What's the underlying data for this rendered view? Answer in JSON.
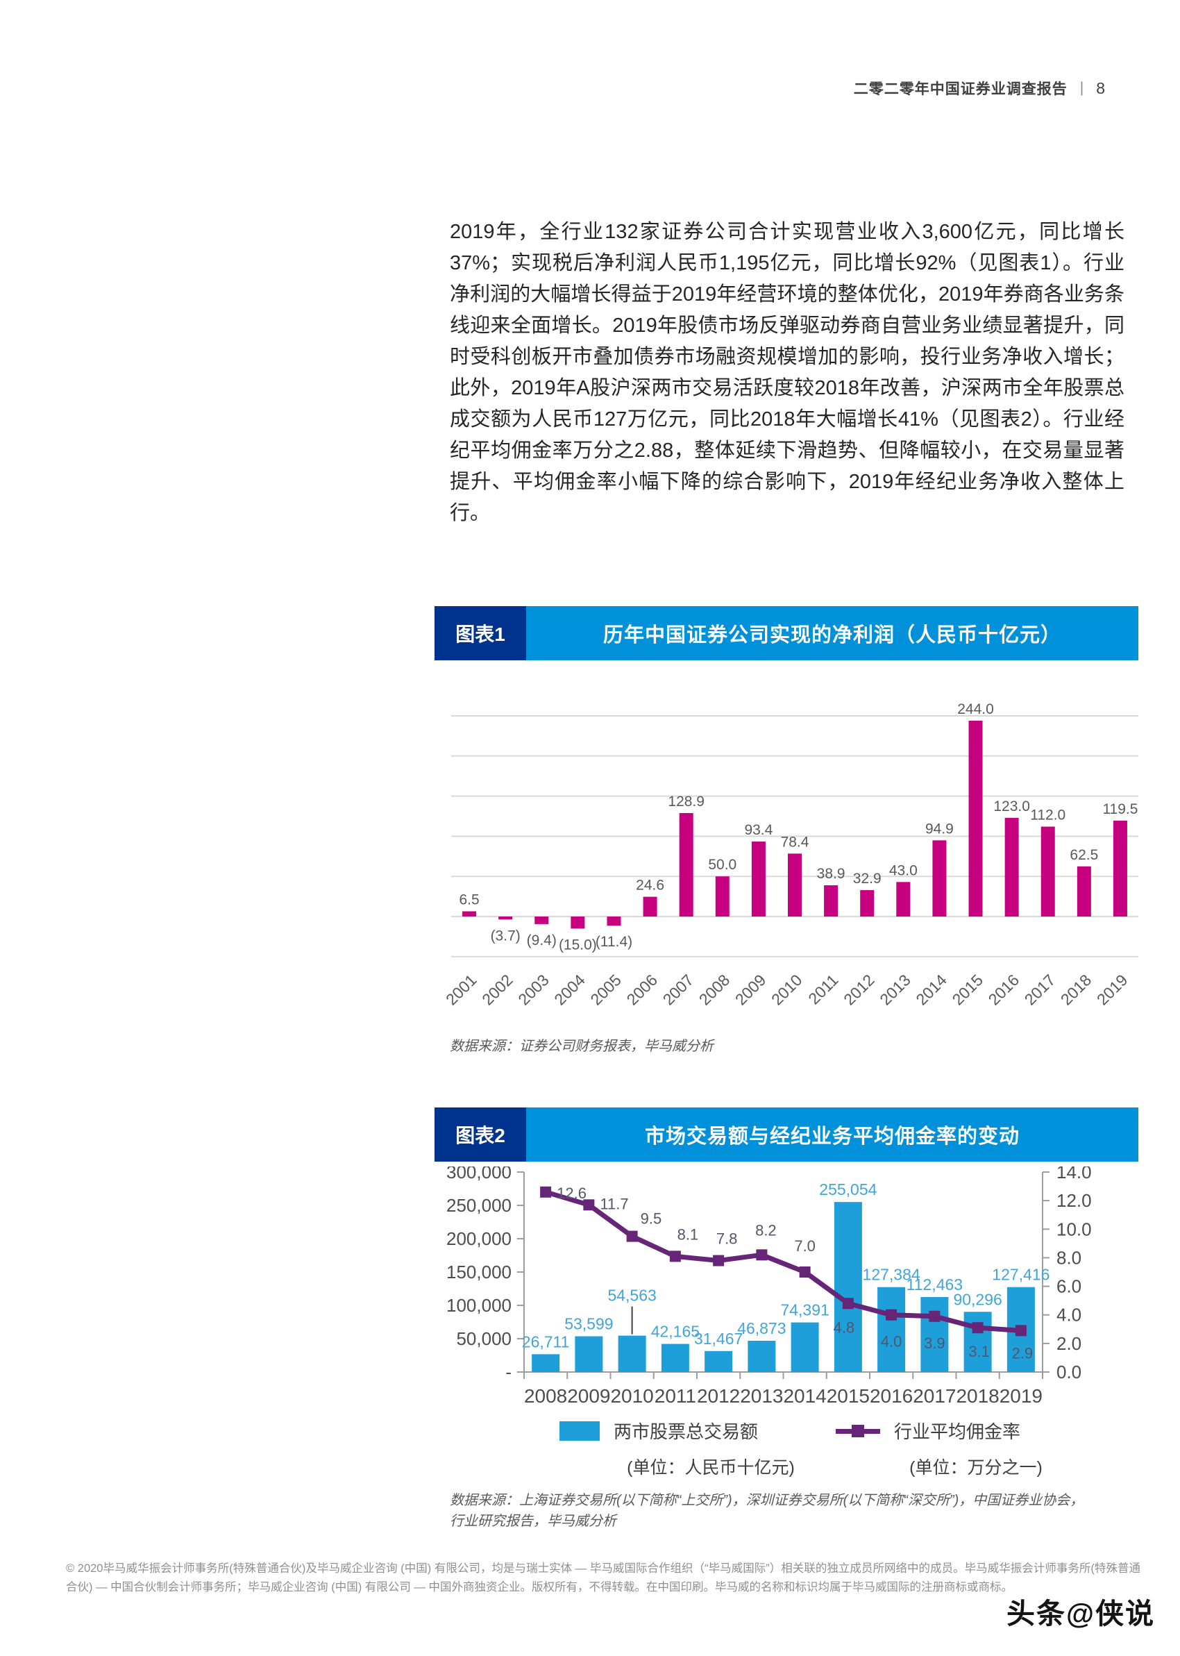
{
  "header": {
    "title": "二零二零年中国证券业调查报告",
    "separator": "|",
    "page_number": "8"
  },
  "paragraph": "2019年，全行业132家证券公司合计实现营业收入3,600亿元，同比增长37%；实现税后净利润人民币1,195亿元，同比增长92%（见图表1）。行业净利润的大幅增长得益于2019年经营环境的整体优化，2019年券商各业务条线迎来全面增长。2019年股债市场反弹驱动券商自营业务业绩显著提升，同时受科创板开市叠加债券市场融资规模增加的影响，投行业务净收入增长；此外，2019年A股沪深两市交易活跃度较2018年改善，沪深两市全年股票总成交额为人民币127万亿元，同比2018年大幅增长41%（见图表2）。行业经纪平均佣金率万分之2.88，整体延续下滑趋势、但降幅较小，在交易量显著提升、平均佣金率小幅下降的综合影响下，2019年经纪业务净收入整体上行。",
  "chart_data": [
    {
      "type": "bar",
      "tag": "图表1",
      "title": "历年中国证券公司实现的净利润（人民币十亿元）",
      "categories": [
        "2001",
        "2002",
        "2003",
        "2004",
        "2005",
        "2006",
        "2007",
        "2008",
        "2009",
        "2010",
        "2011",
        "2012",
        "2013",
        "2014",
        "2015",
        "2016",
        "2017",
        "2018",
        "2019"
      ],
      "values": [
        6.5,
        -3.7,
        -9.4,
        -15.0,
        -11.4,
        24.6,
        128.9,
        50.0,
        93.4,
        78.4,
        38.9,
        32.9,
        43.0,
        94.9,
        244.0,
        123.0,
        112.0,
        62.5,
        119.5
      ],
      "labels": [
        "6.5",
        "(3.7)",
        "(9.4)",
        "(15.0)",
        "(11.4)",
        "24.6",
        "128.9",
        "50.0",
        "93.4",
        "78.4",
        "38.9",
        "32.9",
        "43.0",
        "94.9",
        "244.0",
        "123.0",
        "112.0",
        "62.5",
        "119.5"
      ],
      "ylim": [
        -50,
        250
      ],
      "grid_step": 50,
      "grid": true,
      "legend_position": "none",
      "xlabel": "",
      "ylabel": "",
      "source": "数据来源：证券公司财务报表，毕马威分析"
    },
    {
      "type": "bar+line",
      "tag": "图表2",
      "title": "市场交易额与经纪业务平均佣金率的变动",
      "categories": [
        "2008",
        "2009",
        "2010",
        "2011",
        "2012",
        "2013",
        "2014",
        "2015",
        "2016",
        "2017",
        "2018",
        "2019"
      ],
      "series": [
        {
          "name": "两市股票总交易额",
          "type": "bar",
          "axis": "left",
          "unit": "(单位：人民币十亿元)",
          "values": [
            26711,
            53599,
            54563,
            42165,
            31467,
            46873,
            74391,
            255054,
            127384,
            112463,
            90296,
            127416
          ],
          "labels": [
            "26,711",
            "53,599",
            "54,563",
            "42,165",
            "31,467",
            "46,873",
            "74,391",
            "255,054",
            "127,384",
            "112,463",
            "90,296",
            "127,416"
          ]
        },
        {
          "name": "行业平均佣金率",
          "type": "line",
          "axis": "right",
          "unit": "(单位：万分之一)",
          "values": [
            12.6,
            11.7,
            9.5,
            8.1,
            7.8,
            8.2,
            7.0,
            4.8,
            4.0,
            3.9,
            3.1,
            2.9
          ],
          "labels": [
            "12.6",
            "11.7",
            "9.5",
            "8.1",
            "7.8",
            "8.2",
            "7.0",
            "4.8",
            "4.0",
            "3.9",
            "3.1",
            "2.9"
          ]
        }
      ],
      "left_axis": {
        "labels": [
          "300,000",
          "250,000",
          "200,000",
          "150,000",
          "100,000",
          "50,000",
          "-"
        ],
        "max": 300000,
        "min": 0
      },
      "right_axis": {
        "labels": [
          "14.0",
          "12.0",
          "10.0",
          "8.0",
          "6.0",
          "4.0",
          "2.0",
          "0.0"
        ],
        "max": 14,
        "min": 0
      },
      "grid": false,
      "legend_position": "bottom",
      "source": "数据来源：上海证券交易所(以下简称“上交所”)，深圳证券交易所(以下简称“深交所”)，中国证券业协会，\n行业研究报告，毕马威分析"
    }
  ],
  "footer": "© 2020毕马威华振会计师事务所(特殊普通合伙)及毕马威企业咨询 (中国) 有限公司，均是与瑞士实体 — 毕马威国际合作组织（“毕马威国际”）相关联的独立成员所网络中的成员。毕马威华振会计师事务所(特殊普通合伙) — 中国合伙制会计师事务所；毕马威企业咨询 (中国) 有限公司 — 中国外商独资企业。版权所有，不得转载。在中国印刷。毕马威的名称和标识均属于毕马威国际的注册商标或商标。",
  "watermark": "头条@侠说",
  "colors": {
    "dark_blue": "#00338D",
    "light_blue": "#0091DA",
    "pink": "#C6007E",
    "bar_blue": "#1E9FD9",
    "purple": "#662577",
    "grid": "#D9D9D9",
    "axis": "#9D9D9D",
    "label_gray": "#595959",
    "bar_label": "#41A5D9",
    "line_label": "#55556B",
    "text": "#262626",
    "footer_gray": "#8F8F8F"
  }
}
